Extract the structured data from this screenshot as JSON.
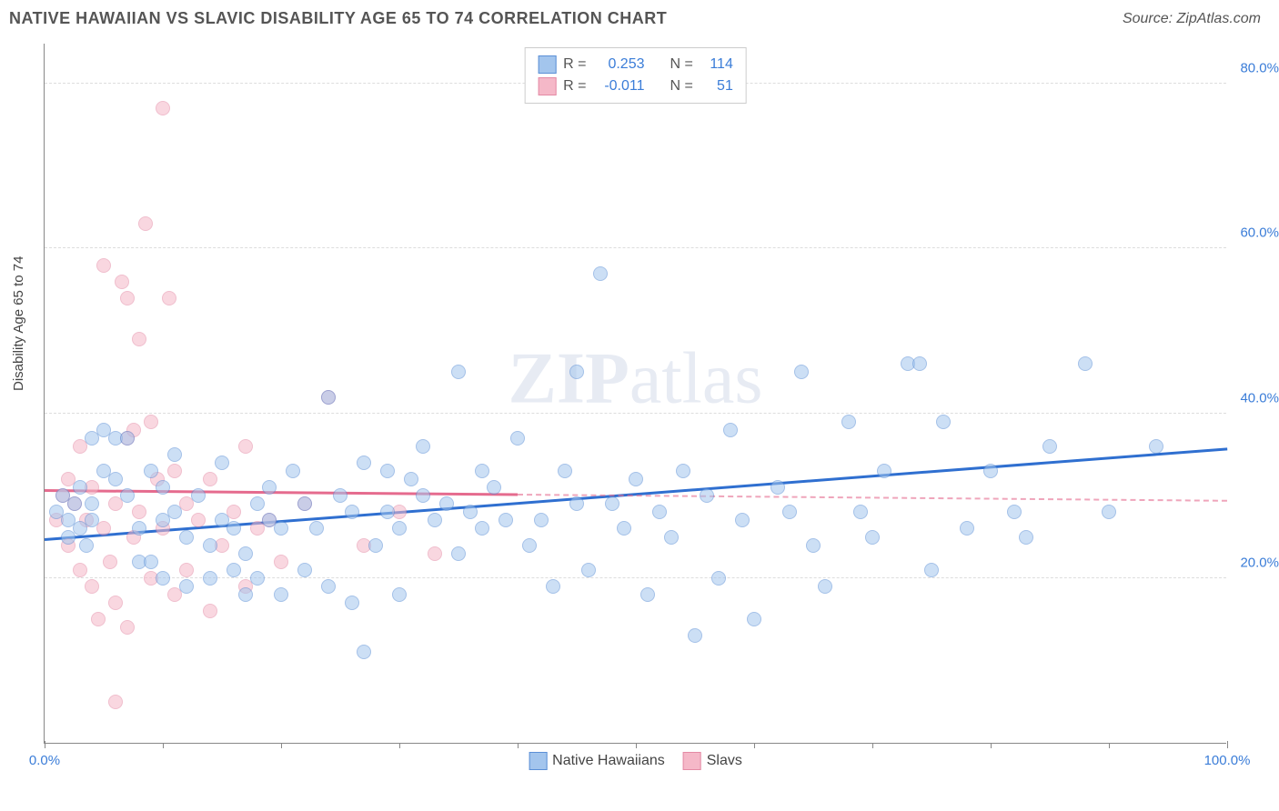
{
  "title": "NATIVE HAWAIIAN VS SLAVIC DISABILITY AGE 65 TO 74 CORRELATION CHART",
  "source": "Source: ZipAtlas.com",
  "ylabel": "Disability Age 65 to 74",
  "watermark": "ZIPatlas",
  "chart": {
    "type": "scatter",
    "xlim": [
      0,
      100
    ],
    "ylim": [
      0,
      85
    ],
    "xtick_major": [
      0,
      100
    ],
    "xtick_minor": [
      10,
      20,
      30,
      40,
      50,
      60,
      70,
      80,
      90
    ],
    "ytick_labels": [
      20,
      40,
      60,
      80
    ],
    "background_color": "#ffffff",
    "grid_color": "#dddddd",
    "axis_color": "#888888",
    "point_radius": 8,
    "point_opacity": 0.55,
    "series": [
      {
        "name": "Native Hawaiians",
        "color_fill": "#a3c5ed",
        "color_stroke": "#5b8fd6",
        "r": "0.253",
        "n": "114",
        "trend": {
          "x1": 0,
          "y1": 24.5,
          "x2": 100,
          "y2": 35.5,
          "color": "#2f6fd0",
          "width": 3
        },
        "points": [
          [
            1,
            28
          ],
          [
            1.5,
            30
          ],
          [
            2,
            25
          ],
          [
            2,
            27
          ],
          [
            2.5,
            29
          ],
          [
            3,
            26
          ],
          [
            3,
            31
          ],
          [
            3.5,
            24
          ],
          [
            4,
            29
          ],
          [
            4,
            27
          ],
          [
            5,
            38
          ],
          [
            6,
            37
          ],
          [
            6,
            32
          ],
          [
            7,
            30
          ],
          [
            8,
            26
          ],
          [
            8,
            22
          ],
          [
            9,
            33
          ],
          [
            10,
            31
          ],
          [
            10,
            27
          ],
          [
            10,
            20
          ],
          [
            11,
            28
          ],
          [
            12,
            25
          ],
          [
            12,
            19
          ],
          [
            13,
            30
          ],
          [
            14,
            20
          ],
          [
            14,
            24
          ],
          [
            15,
            27
          ],
          [
            15,
            34
          ],
          [
            16,
            21
          ],
          [
            16,
            26
          ],
          [
            17,
            18
          ],
          [
            17,
            23
          ],
          [
            18,
            29
          ],
          [
            18,
            20
          ],
          [
            19,
            27
          ],
          [
            19,
            31
          ],
          [
            20,
            18
          ],
          [
            20,
            26
          ],
          [
            21,
            33
          ],
          [
            22,
            21
          ],
          [
            22,
            29
          ],
          [
            23,
            26
          ],
          [
            24,
            42
          ],
          [
            24,
            19
          ],
          [
            25,
            30
          ],
          [
            26,
            17
          ],
          [
            26,
            28
          ],
          [
            27,
            34
          ],
          [
            27,
            11
          ],
          [
            28,
            24
          ],
          [
            29,
            28
          ],
          [
            29,
            33
          ],
          [
            30,
            26
          ],
          [
            30,
            18
          ],
          [
            31,
            32
          ],
          [
            32,
            30
          ],
          [
            32,
            36
          ],
          [
            33,
            27
          ],
          [
            34,
            29
          ],
          [
            35,
            23
          ],
          [
            35,
            45
          ],
          [
            36,
            28
          ],
          [
            37,
            26
          ],
          [
            37,
            33
          ],
          [
            38,
            31
          ],
          [
            39,
            27
          ],
          [
            40,
            37
          ],
          [
            41,
            24
          ],
          [
            42,
            27
          ],
          [
            43,
            19
          ],
          [
            44,
            33
          ],
          [
            45,
            29
          ],
          [
            45,
            45
          ],
          [
            46,
            21
          ],
          [
            47,
            57
          ],
          [
            48,
            29
          ],
          [
            49,
            26
          ],
          [
            50,
            32
          ],
          [
            51,
            18
          ],
          [
            52,
            28
          ],
          [
            53,
            25
          ],
          [
            54,
            33
          ],
          [
            55,
            13
          ],
          [
            56,
            30
          ],
          [
            57,
            20
          ],
          [
            58,
            38
          ],
          [
            59,
            27
          ],
          [
            60,
            15
          ],
          [
            62,
            31
          ],
          [
            63,
            28
          ],
          [
            64,
            45
          ],
          [
            65,
            24
          ],
          [
            66,
            19
          ],
          [
            68,
            39
          ],
          [
            69,
            28
          ],
          [
            70,
            25
          ],
          [
            71,
            33
          ],
          [
            73,
            46
          ],
          [
            74,
            46
          ],
          [
            75,
            21
          ],
          [
            76,
            39
          ],
          [
            78,
            26
          ],
          [
            80,
            33
          ],
          [
            82,
            28
          ],
          [
            83,
            25
          ],
          [
            85,
            36
          ],
          [
            88,
            46
          ],
          [
            90,
            28
          ],
          [
            94,
            36
          ],
          [
            4,
            37
          ],
          [
            5,
            33
          ],
          [
            7,
            37
          ],
          [
            9,
            22
          ],
          [
            11,
            35
          ]
        ]
      },
      {
        "name": "Slavs",
        "color_fill": "#f5b8c8",
        "color_stroke": "#e48aa5",
        "r": "-0.011",
        "n": "51",
        "trend": {
          "x1": 0,
          "y1": 30.5,
          "x2": 40,
          "y2": 30.0,
          "color": "#e56b8e",
          "width": 3,
          "dash_extend_to": 100
        },
        "points": [
          [
            1,
            27
          ],
          [
            1.5,
            30
          ],
          [
            2,
            24
          ],
          [
            2,
            32
          ],
          [
            2.5,
            29
          ],
          [
            3,
            21
          ],
          [
            3,
            36
          ],
          [
            3.5,
            27
          ],
          [
            4,
            19
          ],
          [
            4,
            31
          ],
          [
            4.5,
            15
          ],
          [
            5,
            26
          ],
          [
            5,
            58
          ],
          [
            5.5,
            22
          ],
          [
            6,
            17
          ],
          [
            6,
            29
          ],
          [
            6.5,
            56
          ],
          [
            7,
            14
          ],
          [
            7,
            54
          ],
          [
            7,
            37
          ],
          [
            7.5,
            25
          ],
          [
            7.5,
            38
          ],
          [
            8,
            49
          ],
          [
            8,
            28
          ],
          [
            8.5,
            63
          ],
          [
            9,
            39
          ],
          [
            9,
            20
          ],
          [
            9.5,
            32
          ],
          [
            10,
            77
          ],
          [
            10,
            26
          ],
          [
            10.5,
            54
          ],
          [
            11,
            18
          ],
          [
            11,
            33
          ],
          [
            12,
            29
          ],
          [
            12,
            21
          ],
          [
            13,
            27
          ],
          [
            14,
            32
          ],
          [
            14,
            16
          ],
          [
            15,
            24
          ],
          [
            16,
            28
          ],
          [
            17,
            19
          ],
          [
            17,
            36
          ],
          [
            18,
            26
          ],
          [
            19,
            27
          ],
          [
            20,
            22
          ],
          [
            22,
            29
          ],
          [
            24,
            42
          ],
          [
            27,
            24
          ],
          [
            30,
            28
          ],
          [
            33,
            23
          ],
          [
            6,
            5
          ]
        ]
      }
    ]
  },
  "legend_top": {
    "r_label": "R =",
    "n_label": "N ="
  },
  "legend_bottom": [
    {
      "label": "Native Hawaiians",
      "fill": "#a3c5ed",
      "stroke": "#5b8fd6"
    },
    {
      "label": "Slavs",
      "fill": "#f5b8c8",
      "stroke": "#e48aa5"
    }
  ],
  "colors": {
    "text_primary": "#555555",
    "tick_label": "#3b7dd8",
    "stat_value": "#3b7dd8"
  }
}
